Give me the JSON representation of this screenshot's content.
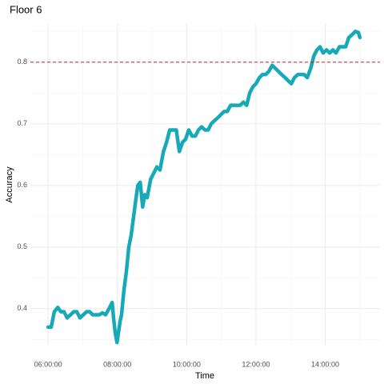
{
  "chart_data": {
    "type": "line",
    "title": "Floor 6",
    "xlabel": "Time",
    "ylabel": "Accuracy",
    "x": [
      6.0,
      6.09,
      6.18,
      6.28,
      6.37,
      6.46,
      6.55,
      6.65,
      6.74,
      6.83,
      6.92,
      7.02,
      7.11,
      7.2,
      7.29,
      7.39,
      7.48,
      7.57,
      7.66,
      7.76,
      7.85,
      7.89,
      7.94,
      7.99,
      8.03,
      8.08,
      8.12,
      8.19,
      8.26,
      8.33,
      8.4,
      8.47,
      8.54,
      8.59,
      8.66,
      8.73,
      8.79,
      8.86,
      8.96,
      9.05,
      9.14,
      9.23,
      9.33,
      9.42,
      9.51,
      9.6,
      9.7,
      9.79,
      9.88,
      9.97,
      10.06,
      10.16,
      10.25,
      10.34,
      10.43,
      10.53,
      10.62,
      10.71,
      10.8,
      10.9,
      10.99,
      11.08,
      11.17,
      11.27,
      11.36,
      11.45,
      11.54,
      11.64,
      11.73,
      11.82,
      11.91,
      12.0,
      12.1,
      12.19,
      12.28,
      12.37,
      12.47,
      12.56,
      12.65,
      12.74,
      12.84,
      12.93,
      13.02,
      13.11,
      13.21,
      13.3,
      13.39,
      13.48,
      13.58,
      13.67,
      13.76,
      13.85,
      13.94,
      14.04,
      14.13,
      14.22,
      14.31,
      14.41,
      14.5,
      14.59,
      14.68,
      14.78,
      14.87,
      14.96,
      15.0
    ],
    "series": [
      {
        "name": "Accuracy",
        "color": "#17a9b8",
        "values": [
          0.37,
          0.37,
          0.395,
          0.402,
          0.395,
          0.395,
          0.385,
          0.39,
          0.395,
          0.395,
          0.385,
          0.39,
          0.395,
          0.395,
          0.39,
          0.39,
          0.39,
          0.393,
          0.39,
          0.4,
          0.41,
          0.385,
          0.36,
          0.345,
          0.36,
          0.38,
          0.39,
          0.43,
          0.46,
          0.5,
          0.52,
          0.55,
          0.58,
          0.6,
          0.605,
          0.565,
          0.585,
          0.58,
          0.61,
          0.62,
          0.63,
          0.625,
          0.655,
          0.67,
          0.69,
          0.69,
          0.69,
          0.655,
          0.67,
          0.675,
          0.69,
          0.68,
          0.68,
          0.69,
          0.695,
          0.69,
          0.69,
          0.7,
          0.705,
          0.71,
          0.715,
          0.72,
          0.72,
          0.73,
          0.73,
          0.73,
          0.73,
          0.735,
          0.73,
          0.75,
          0.76,
          0.765,
          0.775,
          0.78,
          0.78,
          0.785,
          0.795,
          0.79,
          0.785,
          0.78,
          0.775,
          0.77,
          0.765,
          0.775,
          0.78,
          0.78,
          0.78,
          0.775,
          0.79,
          0.81,
          0.82,
          0.825,
          0.815,
          0.82,
          0.815,
          0.82,
          0.815,
          0.825,
          0.825,
          0.825,
          0.84,
          0.845,
          0.85,
          0.848,
          0.84
        ]
      }
    ],
    "hline": 0.8,
    "hline_color": "#cc2222",
    "xlim": [
      5.49,
      15.58
    ],
    "ylim": [
      0.34,
      0.862
    ],
    "xticks": [
      {
        "value": 6,
        "label": "06:00:00"
      },
      {
        "value": 8,
        "label": "08:00:00"
      },
      {
        "value": 10,
        "label": "10:00:00"
      },
      {
        "value": 12,
        "label": "12:00:00"
      },
      {
        "value": 14,
        "label": "14:00:00"
      }
    ],
    "yticks": [
      0.4,
      0.5,
      0.6,
      0.7,
      0.8
    ],
    "grid": true
  }
}
